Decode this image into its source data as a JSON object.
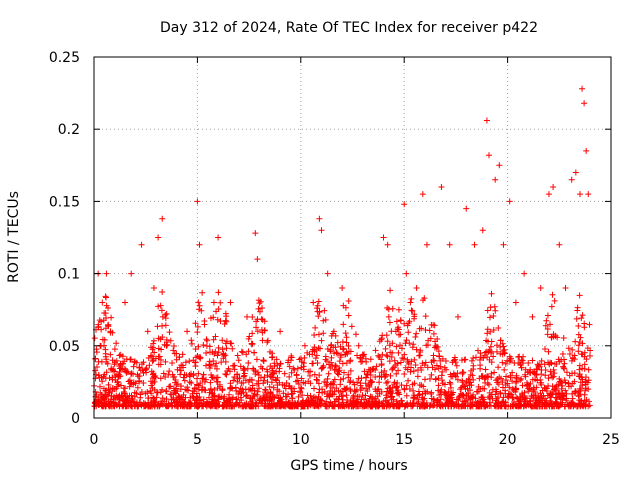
{
  "chart_data": {
    "type": "scatter",
    "title": "Day 312 of 2024, Rate Of TEC Index for receiver p422",
    "xlabel": "GPS time / hours",
    "ylabel": "ROTI / TECUs",
    "xlim": [
      0,
      25
    ],
    "ylim": [
      0,
      0.25
    ],
    "grid": true,
    "marker": "+",
    "marker_color": "#ff0000",
    "x_ticks": [
      0,
      5,
      10,
      15,
      20,
      25
    ],
    "x_tick_labels": [
      "0",
      "5",
      "10",
      "15",
      "20",
      "25"
    ],
    "y_ticks": [
      0,
      0.05,
      0.1,
      0.15,
      0.2,
      0.25
    ],
    "y_tick_labels": [
      "0",
      "0.05",
      "0.1",
      "0.15",
      "0.2",
      "0.25"
    ],
    "series": [
      {
        "name": "ROTI p422",
        "x": [
          0.05,
          0.1,
          0.2,
          0.3,
          0.4,
          0.5,
          0.6,
          0.7,
          0.8,
          0.9,
          1.0,
          1.2,
          1.5,
          1.8,
          2.1,
          2.3,
          2.6,
          2.9,
          3.1,
          3.3,
          3.5,
          3.8,
          4.2,
          4.5,
          4.8,
          5.0,
          5.1,
          5.3,
          5.8,
          6.0,
          6.2,
          6.6,
          7.0,
          7.4,
          7.8,
          7.9,
          8.2,
          8.6,
          9.0,
          9.4,
          9.8,
          10.2,
          10.6,
          10.9,
          11.0,
          11.3,
          11.6,
          12.0,
          12.4,
          12.8,
          13.2,
          13.6,
          14.0,
          14.2,
          14.6,
          15.0,
          15.1,
          15.3,
          15.6,
          15.9,
          16.1,
          16.4,
          16.8,
          17.2,
          17.6,
          18.0,
          18.4,
          18.8,
          19.0,
          19.1,
          19.4,
          19.6,
          19.8,
          20.1,
          20.4,
          20.8,
          21.2,
          21.6,
          22.0,
          22.2,
          22.5,
          22.8,
          23.1,
          23.3,
          23.5,
          23.6,
          23.7,
          23.8,
          23.9
        ],
        "y": [
          0.01,
          0.03,
          0.1,
          0.05,
          0.08,
          0.03,
          0.1,
          0.02,
          0.06,
          0.04,
          0.02,
          0.03,
          0.08,
          0.1,
          0.03,
          0.12,
          0.06,
          0.09,
          0.125,
          0.138,
          0.05,
          0.03,
          0.02,
          0.06,
          0.04,
          0.15,
          0.12,
          0.03,
          0.08,
          0.125,
          0.02,
          0.08,
          0.04,
          0.07,
          0.128,
          0.11,
          0.04,
          0.03,
          0.06,
          0.04,
          0.03,
          0.05,
          0.08,
          0.138,
          0.13,
          0.1,
          0.06,
          0.09,
          0.04,
          0.05,
          0.03,
          0.02,
          0.125,
          0.12,
          0.06,
          0.148,
          0.1,
          0.08,
          0.09,
          0.155,
          0.12,
          0.04,
          0.16,
          0.12,
          0.07,
          0.145,
          0.12,
          0.13,
          0.206,
          0.182,
          0.165,
          0.175,
          0.12,
          0.15,
          0.08,
          0.1,
          0.07,
          0.09,
          0.155,
          0.16,
          0.12,
          0.09,
          0.165,
          0.17,
          0.155,
          0.228,
          0.218,
          0.185,
          0.155
        ]
      }
    ]
  }
}
